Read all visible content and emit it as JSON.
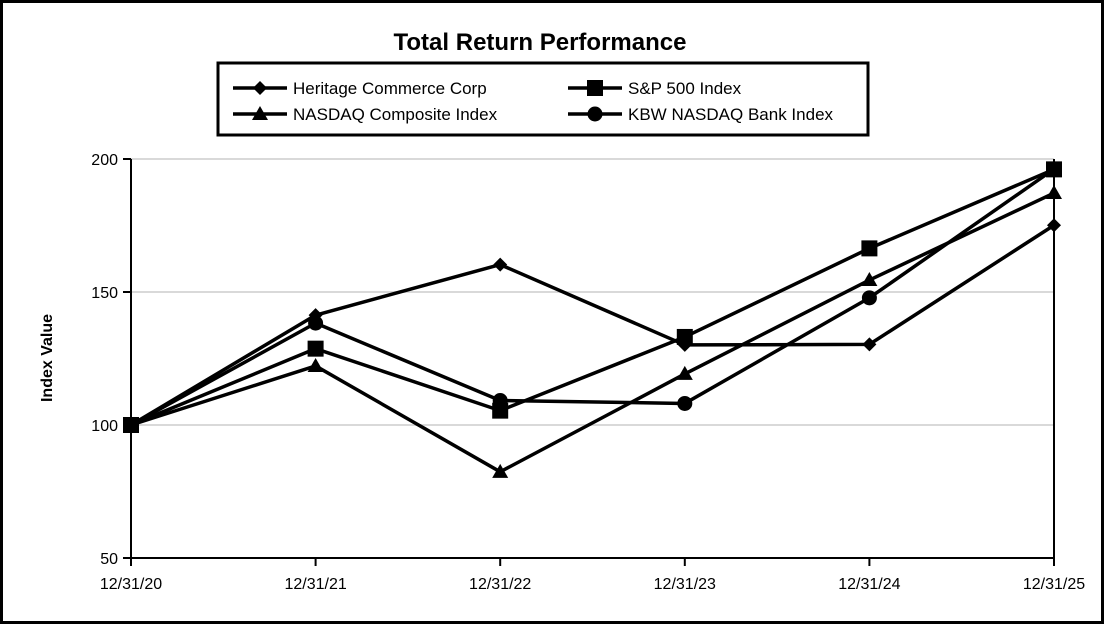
{
  "chart_data": {
    "type": "line",
    "title": "Total Return Performance",
    "xlabel": "",
    "ylabel": "Index Value",
    "categories": [
      "12/31/20",
      "12/31/21",
      "12/31/22",
      "12/31/23",
      "12/31/24",
      "12/31/25"
    ],
    "ylim": [
      50,
      200
    ],
    "yticks": [
      "50",
      "100",
      "150",
      "200"
    ],
    "grid": true,
    "legend_position": "top-center",
    "series": [
      {
        "name": "Heritage Commerce Corp",
        "marker": "diamond",
        "color": "#000000",
        "values": [
          100,
          141.3,
          160.3,
          130.1,
          130.3,
          175.1
        ]
      },
      {
        "name": "S&P 500 Index",
        "marker": "square",
        "color": "#000000",
        "values": [
          100,
          128.7,
          105.4,
          133.1,
          166.4,
          196.1
        ]
      },
      {
        "name": "NASDAQ Composite Index",
        "marker": "triangle",
        "color": "#000000",
        "values": [
          100,
          122.2,
          82.4,
          119.2,
          154.5,
          187.2
        ]
      },
      {
        "name": "KBW NASDAQ Bank Index",
        "marker": "circle",
        "color": "#000000",
        "values": [
          100,
          138.3,
          109.2,
          108.1,
          147.8,
          196.2
        ]
      }
    ]
  }
}
